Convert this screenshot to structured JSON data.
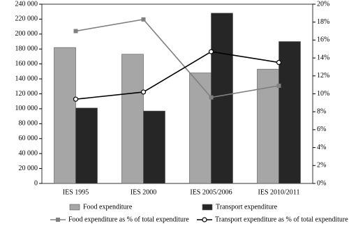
{
  "chart_data": {
    "type": "bar",
    "categories": [
      "IES 1995",
      "IES 2000",
      "IES 2005/2006",
      "IES 2010/2011"
    ],
    "series": [
      {
        "name": "Food expenditure",
        "type": "bar",
        "color": "#a6a6a6",
        "values": [
          182000,
          173000,
          148000,
          153000
        ]
      },
      {
        "name": "Transport expenditure",
        "type": "bar",
        "color": "#262626",
        "values": [
          101000,
          97000,
          228000,
          190000
        ]
      },
      {
        "name": "Food expenditure as % of total expenditure",
        "type": "line",
        "marker": "square",
        "axis": "y2",
        "color": "#808080",
        "values": [
          17,
          18.3,
          9.6,
          10.9
        ]
      },
      {
        "name": "Transport expenditure as % of total expenditure",
        "type": "line",
        "marker": "circle",
        "axis": "y2",
        "color": "#000000",
        "values": [
          9.4,
          10.2,
          14.7,
          13.5
        ]
      }
    ],
    "ylim": [
      0,
      240000
    ],
    "yticks": [
      0,
      {
        "value": 20000,
        "label": "20 000"
      },
      {
        "value": 40000,
        "label": "40 000"
      },
      {
        "value": 60000,
        "label": "60 000"
      },
      {
        "value": 80000,
        "label": "80 000"
      },
      {
        "value": 100000,
        "label": "100 000"
      },
      {
        "value": 120000,
        "label": "120 000"
      },
      {
        "value": 140000,
        "label": "140 000"
      },
      {
        "value": 160000,
        "label": "160 000"
      },
      {
        "value": 180000,
        "label": "180 000"
      },
      {
        "value": 200000,
        "label": "200 000"
      },
      {
        "value": 220000,
        "label": "220 000"
      },
      {
        "value": 240000,
        "label": "240 000"
      }
    ],
    "y2lim": [
      0,
      20
    ],
    "y2ticks": [
      {
        "value": 0,
        "label": "0%"
      },
      {
        "value": 2,
        "label": "2%"
      },
      {
        "value": 4,
        "label": "4%"
      },
      {
        "value": 6,
        "label": "6%"
      },
      {
        "value": 8,
        "label": "8%"
      },
      {
        "value": 10,
        "label": "10%"
      },
      {
        "value": 12,
        "label": "12%"
      },
      {
        "value": 14,
        "label": "14%"
      },
      {
        "value": 16,
        "label": "16%"
      },
      {
        "value": 18,
        "label": "18%"
      },
      {
        "value": 20,
        "label": "20%"
      }
    ],
    "grid": false,
    "legend": "bottom"
  }
}
